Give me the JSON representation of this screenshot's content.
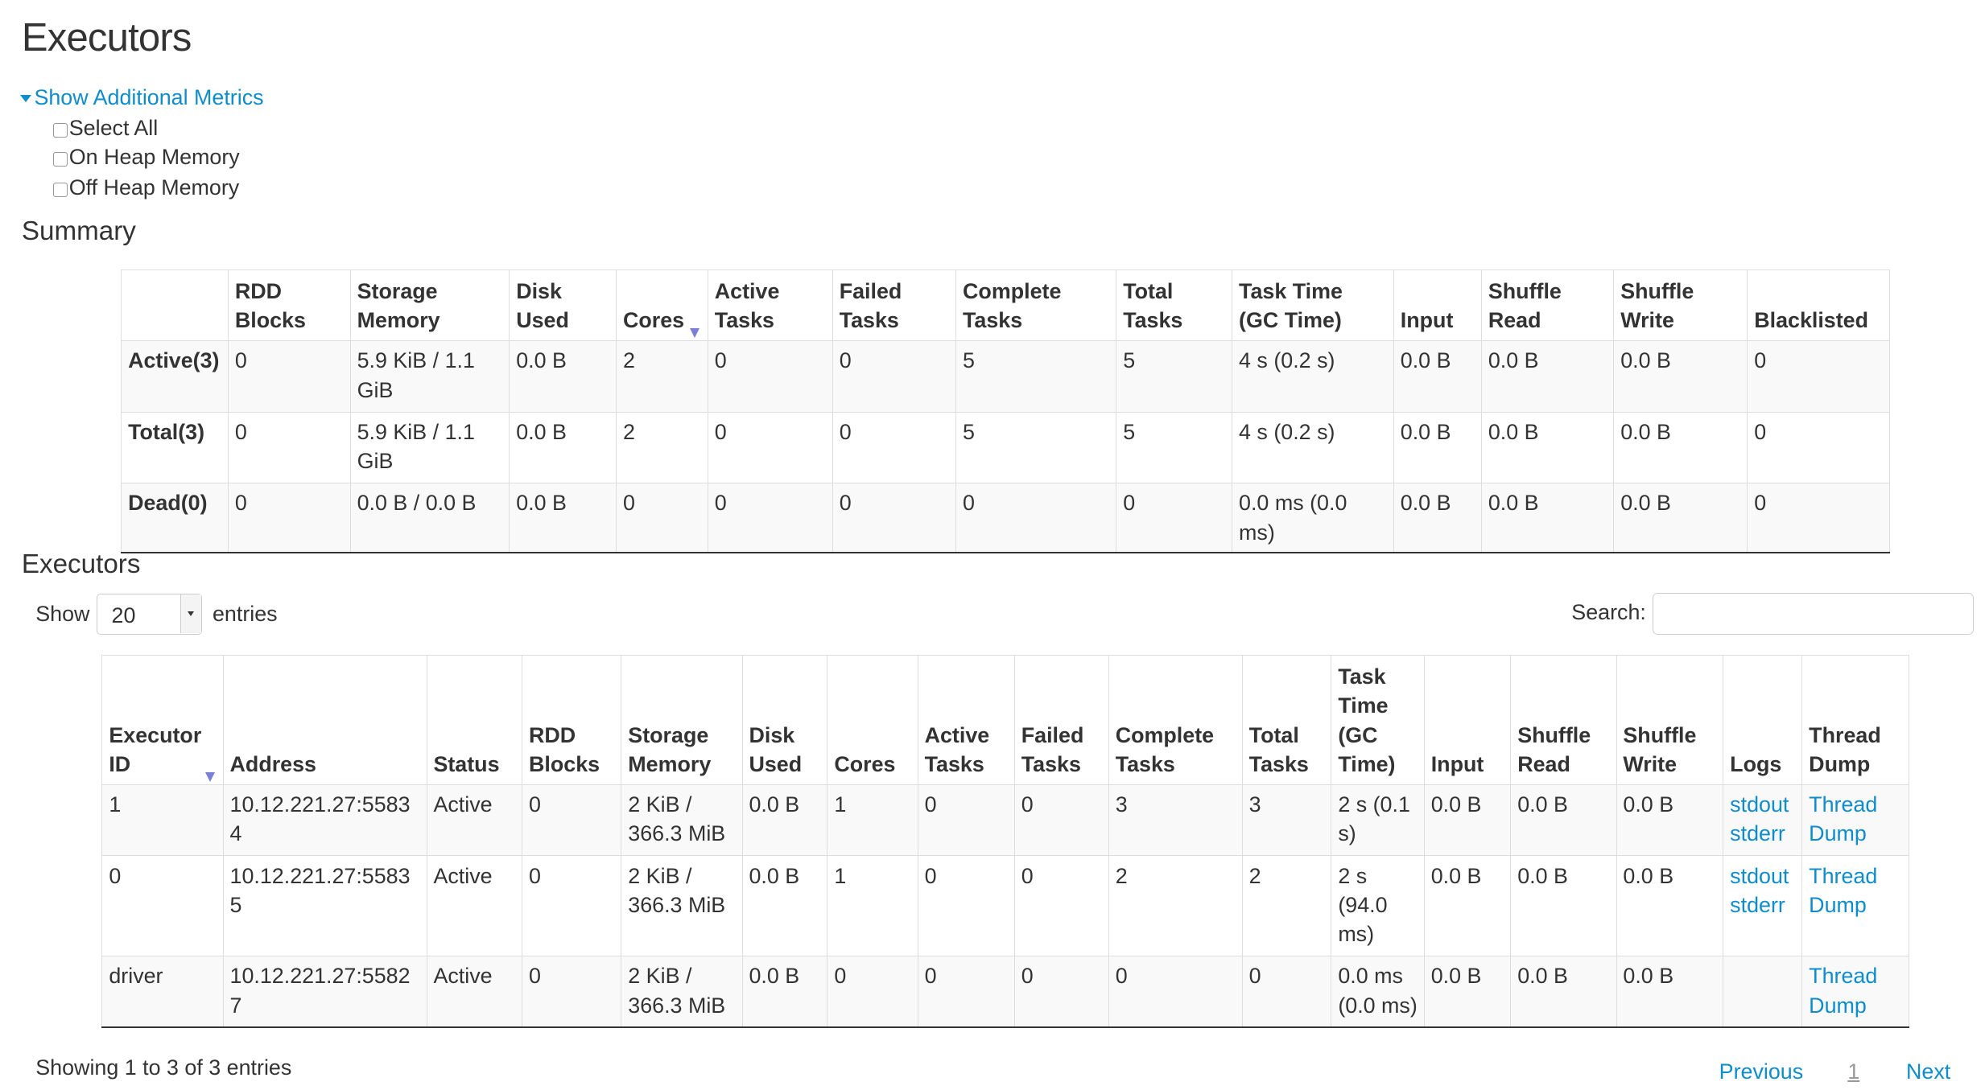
{
  "page_title": "Executors",
  "metrics": {
    "toggle_label": "Show Additional Metrics",
    "options": [
      {
        "label": "Select All",
        "checked": false
      },
      {
        "label": "On Heap Memory",
        "checked": false
      },
      {
        "label": "Off Heap Memory",
        "checked": false
      }
    ]
  },
  "summary": {
    "title": "Summary",
    "columns": [
      "",
      "RDD Blocks",
      "Storage Memory",
      "Disk Used",
      "Cores",
      "Active Tasks",
      "Failed Tasks",
      "Complete Tasks",
      "Total Tasks",
      "Task Time (GC Time)",
      "Input",
      "Shuffle Read",
      "Shuffle Write",
      "Blacklisted"
    ],
    "sorted_column": "Cores",
    "rows": [
      [
        "Active(3)",
        "0",
        "5.9 KiB / 1.1 GiB",
        "0.0 B",
        "2",
        "0",
        "0",
        "5",
        "5",
        "4 s (0.2 s)",
        "0.0 B",
        "0.0 B",
        "0.0 B",
        "0"
      ],
      [
        "Total(3)",
        "0",
        "5.9 KiB / 1.1 GiB",
        "0.0 B",
        "2",
        "0",
        "0",
        "5",
        "5",
        "4 s (0.2 s)",
        "0.0 B",
        "0.0 B",
        "0.0 B",
        "0"
      ],
      [
        "Dead(0)",
        "0",
        "0.0 B / 0.0 B",
        "0.0 B",
        "0",
        "0",
        "0",
        "0",
        "0",
        "0.0 ms (0.0 ms)",
        "0.0 B",
        "0.0 B",
        "0.0 B",
        "0"
      ]
    ]
  },
  "executors": {
    "title": "Executors",
    "show_label": "Show",
    "page_size": "20",
    "entries_label": "entries",
    "search_label": "Search:",
    "search_value": "",
    "columns": [
      "Executor ID",
      "Address",
      "Status",
      "RDD Blocks",
      "Storage Memory",
      "Disk Used",
      "Cores",
      "Active Tasks",
      "Failed Tasks",
      "Complete Tasks",
      "Total Tasks",
      "Task Time (GC Time)",
      "Input",
      "Shuffle Read",
      "Shuffle Write",
      "Logs",
      "Thread Dump"
    ],
    "sorted_column": "Executor ID",
    "rows": [
      {
        "cells": [
          "1",
          "10.12.221.27:55834",
          "Active",
          "0",
          "2 KiB / 366.3 MiB",
          "0.0 B",
          "1",
          "0",
          "0",
          "3",
          "3",
          "2 s (0.1 s)",
          "0.0 B",
          "0.0 B",
          "0.0 B"
        ],
        "logs": [
          "stdout",
          "stderr"
        ],
        "thread_dump": "Thread Dump"
      },
      {
        "cells": [
          "0",
          "10.12.221.27:55835",
          "Active",
          "0",
          "2 KiB / 366.3 MiB",
          "0.0 B",
          "1",
          "0",
          "0",
          "2",
          "2",
          "2 s (94.0 ms)",
          "0.0 B",
          "0.0 B",
          "0.0 B"
        ],
        "logs": [
          "stdout",
          "stderr"
        ],
        "thread_dump": "Thread Dump"
      },
      {
        "cells": [
          "driver",
          "10.12.221.27:55827",
          "Active",
          "0",
          "2 KiB / 366.3 MiB",
          "0.0 B",
          "0",
          "0",
          "0",
          "0",
          "0",
          "0.0 ms (0.0 ms)",
          "0.0 B",
          "0.0 B",
          "0.0 B"
        ],
        "logs": [],
        "thread_dump": "Thread Dump"
      }
    ],
    "info": "Showing 1 to 3 of 3 entries",
    "pagination": {
      "previous": "Previous",
      "current": "1",
      "next": "Next"
    }
  },
  "colors": {
    "link": "#0e8ccc",
    "text": "#333333",
    "sort_arrow": "#7b7fd8"
  }
}
